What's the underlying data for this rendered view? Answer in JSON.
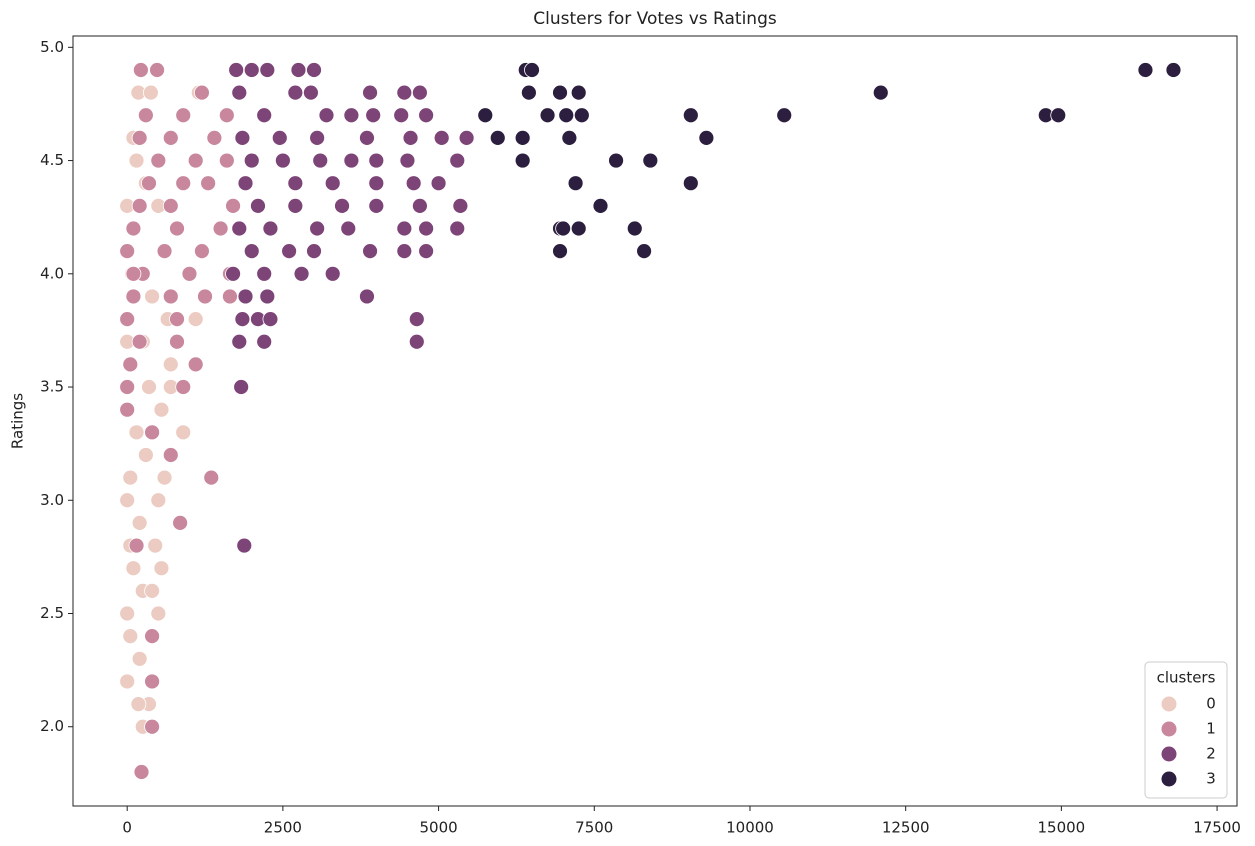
{
  "chart_data": {
    "type": "scatter",
    "title": "Clusters for Votes vs Ratings",
    "y_label": "Ratings",
    "legend_title": "clusters",
    "legend": "lower right",
    "xlim": [
      -870,
      17820
    ],
    "ylim": [
      1.65,
      5.05
    ],
    "xticks": [
      0,
      2500,
      5000,
      7500,
      10000,
      12500,
      15000,
      17500
    ],
    "yticks": [
      {
        "value": 2,
        "label": "2.0"
      },
      2.5,
      {
        "value": 3,
        "label": "3.0"
      },
      3.5,
      {
        "value": 4,
        "label": "4.0"
      },
      4.5,
      {
        "value": 5,
        "label": "5.0"
      }
    ],
    "series": [
      {
        "name": "0",
        "color": "#ebcbc2",
        "x": [
          230,
          180,
          380,
          100,
          300,
          500,
          0,
          150,
          80,
          400,
          0,
          650,
          250,
          700,
          350,
          0,
          550,
          150,
          900,
          300,
          50,
          600,
          0,
          500,
          200,
          50,
          450,
          100,
          550,
          250,
          400,
          0,
          500,
          50,
          200,
          0,
          350,
          250,
          1100,
          1150,
          700,
          180
        ],
        "values": [
          4.9,
          4.8,
          4.8,
          4.6,
          4.4,
          4.3,
          4.3,
          4.5,
          4.0,
          3.9,
          3.8,
          3.8,
          3.7,
          3.6,
          3.5,
          3.7,
          3.4,
          3.3,
          3.3,
          3.2,
          3.1,
          3.1,
          3.0,
          3.0,
          2.9,
          2.8,
          2.8,
          2.7,
          2.7,
          2.6,
          2.6,
          2.5,
          2.5,
          2.4,
          2.3,
          2.2,
          2.1,
          2.0,
          3.8,
          4.8,
          3.5,
          2.1
        ]
      },
      {
        "name": "1",
        "color": "#c8879c",
        "x": [
          220,
          480,
          1200,
          300,
          900,
          1600,
          200,
          700,
          1400,
          500,
          1100,
          1600,
          350,
          900,
          1300,
          200,
          700,
          1700,
          100,
          800,
          1500,
          0,
          600,
          1200,
          250,
          1000,
          1650,
          100,
          700,
          1250,
          1650,
          0,
          800,
          200,
          800,
          50,
          1100,
          0,
          900,
          0,
          400,
          700,
          1350,
          850,
          150,
          400,
          400,
          400,
          230,
          100
        ],
        "values": [
          4.9,
          4.9,
          4.8,
          4.7,
          4.7,
          4.7,
          4.6,
          4.6,
          4.6,
          4.5,
          4.5,
          4.5,
          4.4,
          4.4,
          4.4,
          4.3,
          4.3,
          4.3,
          4.2,
          4.2,
          4.2,
          4.1,
          4.1,
          4.1,
          4.0,
          4.0,
          4.0,
          3.9,
          3.9,
          3.9,
          3.9,
          3.8,
          3.8,
          3.7,
          3.7,
          3.6,
          3.6,
          3.5,
          3.5,
          3.4,
          3.3,
          3.2,
          3.1,
          2.9,
          2.8,
          2.4,
          2.2,
          2.0,
          1.8,
          4.0
        ]
      },
      {
        "name": "2",
        "color": "#7d4477",
        "x": [
          1750,
          2000,
          2250,
          2750,
          3000,
          1800,
          2700,
          2950,
          3900,
          4450,
          4700,
          2200,
          3200,
          3600,
          3950,
          4400,
          4800,
          1850,
          2450,
          3050,
          3850,
          4550,
          5050,
          5450,
          2000,
          2500,
          3100,
          3600,
          4000,
          4500,
          5300,
          1900,
          2700,
          3300,
          4000,
          4600,
          5000,
          2100,
          2700,
          3450,
          4000,
          4700,
          5350,
          1800,
          2300,
          3050,
          3550,
          4450,
          4800,
          5300,
          2000,
          2600,
          3000,
          3900,
          4450,
          4800,
          1700,
          2200,
          2800,
          3300,
          2250,
          1900,
          3850,
          1850,
          2100,
          2300,
          4650,
          1800,
          2200,
          4650,
          1830,
          1880
        ],
        "values": [
          4.9,
          4.9,
          4.9,
          4.9,
          4.9,
          4.8,
          4.8,
          4.8,
          4.8,
          4.8,
          4.8,
          4.7,
          4.7,
          4.7,
          4.7,
          4.7,
          4.7,
          4.6,
          4.6,
          4.6,
          4.6,
          4.6,
          4.6,
          4.6,
          4.5,
          4.5,
          4.5,
          4.5,
          4.5,
          4.5,
          4.5,
          4.4,
          4.4,
          4.4,
          4.4,
          4.4,
          4.4,
          4.3,
          4.3,
          4.3,
          4.3,
          4.3,
          4.3,
          4.2,
          4.2,
          4.2,
          4.2,
          4.2,
          4.2,
          4.2,
          4.1,
          4.1,
          4.1,
          4.1,
          4.1,
          4.1,
          4.0,
          4.0,
          4.0,
          4.0,
          3.9,
          3.9,
          3.9,
          3.8,
          3.8,
          3.8,
          3.8,
          3.7,
          3.7,
          3.7,
          3.5,
          2.8
        ]
      },
      {
        "name": "3",
        "color": "#2c1e3e",
        "x": [
          6400,
          6500,
          16350,
          16800,
          6450,
          6950,
          7250,
          12100,
          5750,
          6750,
          7050,
          7300,
          9050,
          10550,
          14750,
          14950,
          5950,
          6350,
          7100,
          9300,
          6350,
          7850,
          8400,
          7200,
          9050,
          7600,
          6950,
          7000,
          7250,
          8150,
          6950,
          8300
        ],
        "values": [
          4.9,
          4.9,
          4.9,
          4.9,
          4.8,
          4.8,
          4.8,
          4.8,
          4.7,
          4.7,
          4.7,
          4.7,
          4.7,
          4.7,
          4.7,
          4.7,
          4.6,
          4.6,
          4.6,
          4.6,
          4.5,
          4.5,
          4.5,
          4.4,
          4.4,
          4.3,
          4.2,
          4.2,
          4.2,
          4.2,
          4.1,
          4.1
        ]
      }
    ]
  }
}
